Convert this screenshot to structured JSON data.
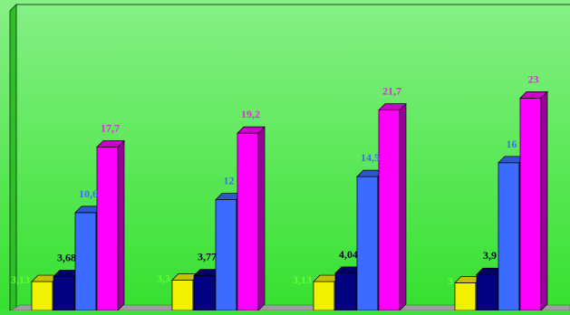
{
  "chart_data": {
    "type": "bar",
    "style": "3d-clustered-column",
    "grid": false,
    "legend": "none",
    "ylim": [
      0,
      24
    ],
    "categories": [
      "",
      "",
      "",
      ""
    ],
    "series": [
      {
        "values": [
          3.13,
          3.3,
          3.13,
          3
        ],
        "labels": [
          "3,13",
          "3,3",
          "3,13",
          "3"
        ],
        "color": "#f2f200",
        "label_color": "#66ff33"
      },
      {
        "values": [
          3.68,
          3.77,
          4.04,
          3.9
        ],
        "labels": [
          "3,68",
          "3,77",
          "4,04",
          "3,9"
        ],
        "color": "#000080",
        "label_color": "#000033"
      },
      {
        "values": [
          10.6,
          12,
          14.5,
          16
        ],
        "labels": [
          "10,6",
          "12",
          "14,5",
          "16"
        ],
        "color": "#3b6cff",
        "label_color": "#3b6cff"
      },
      {
        "values": [
          17.7,
          19.2,
          21.7,
          23
        ],
        "labels": [
          "17,7",
          "19,2",
          "21,7",
          "23"
        ],
        "color": "#ff00ff",
        "label_color": "#ee22ee"
      }
    ],
    "colors": {
      "background_top": "#86f086",
      "background_bottom": "#36e02f",
      "floor": "#9e9e9e",
      "wall_border": "#1a4d1a"
    }
  }
}
